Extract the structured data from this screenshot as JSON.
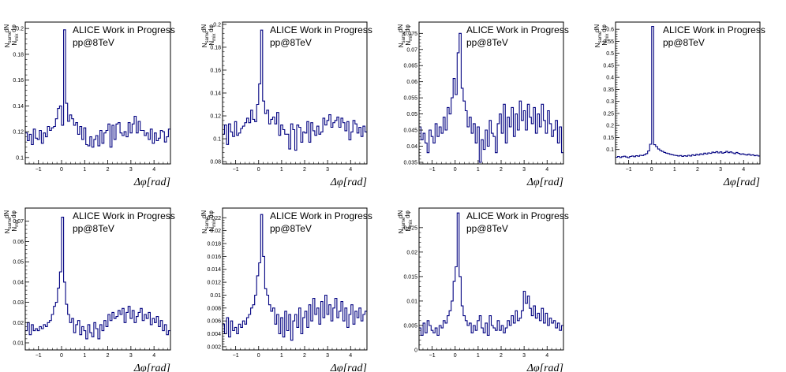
{
  "annotation": [
    "ALICE Work in Progress",
    "pp@8TeV"
  ],
  "xlabel": "Δφ[rad]",
  "ylabel_parts": {
    "num": "N",
    "num_sub": "same",
    "den": "N",
    "den_sub": "mix",
    "frac_num": "dN",
    "frac_den": "dφ"
  },
  "colors": {
    "series": "#000080",
    "frame": "#000000",
    "background": "#ffffff"
  },
  "chart_data": [
    {
      "type": "step",
      "xlim": [
        -1.571,
        4.712
      ],
      "ylim": [
        0.095,
        0.205
      ],
      "xticks": [
        -1,
        0,
        1,
        2,
        3,
        4
      ],
      "yticks": [
        0.1,
        0.12,
        0.14,
        0.16,
        0.18,
        0.2
      ],
      "ytick_labels": [
        "0.1",
        "0.12",
        "0.14",
        "0.16",
        "0.18",
        "0.2"
      ],
      "bins": 72,
      "values": [
        0.119,
        0.113,
        0.118,
        0.11,
        0.122,
        0.115,
        0.114,
        0.121,
        0.111,
        0.119,
        0.116,
        0.124,
        0.121,
        0.123,
        0.124,
        0.13,
        0.138,
        0.14,
        0.125,
        0.199,
        0.142,
        0.128,
        0.133,
        0.13,
        0.125,
        0.127,
        0.118,
        0.124,
        0.114,
        0.123,
        0.11,
        0.109,
        0.116,
        0.108,
        0.114,
        0.117,
        0.109,
        0.121,
        0.111,
        0.119,
        0.121,
        0.126,
        0.108,
        0.125,
        0.114,
        0.126,
        0.127,
        0.119,
        0.117,
        0.12,
        0.116,
        0.127,
        0.119,
        0.126,
        0.132,
        0.119,
        0.128,
        0.121,
        0.121,
        0.117,
        0.119,
        0.114,
        0.122,
        0.111,
        0.119,
        0.113,
        0.115,
        0.121,
        0.12,
        0.112,
        0.116,
        0.122
      ]
    },
    {
      "type": "step",
      "xlim": [
        -1.571,
        4.712
      ],
      "ylim": [
        0.078,
        0.202
      ],
      "xticks": [
        -1,
        0,
        1,
        2,
        3,
        4
      ],
      "yticks": [
        0.08,
        0.1,
        0.12,
        0.14,
        0.16,
        0.18,
        0.2
      ],
      "ytick_labels": [
        "0.08",
        "0.1",
        "0.12",
        "0.14",
        "0.16",
        "0.18",
        "0.2"
      ],
      "bins": 72,
      "values": [
        0.104,
        0.112,
        0.095,
        0.113,
        0.106,
        0.102,
        0.115,
        0.103,
        0.105,
        0.109,
        0.111,
        0.114,
        0.118,
        0.114,
        0.125,
        0.117,
        0.115,
        0.13,
        0.148,
        0.195,
        0.133,
        0.122,
        0.125,
        0.113,
        0.117,
        0.119,
        0.113,
        0.123,
        0.103,
        0.112,
        0.108,
        0.104,
        0.104,
        0.091,
        0.113,
        0.108,
        0.09,
        0.112,
        0.11,
        0.097,
        0.106,
        0.105,
        0.115,
        0.097,
        0.114,
        0.107,
        0.103,
        0.111,
        0.104,
        0.106,
        0.118,
        0.112,
        0.116,
        0.121,
        0.11,
        0.114,
        0.116,
        0.119,
        0.11,
        0.118,
        0.114,
        0.107,
        0.115,
        0.099,
        0.106,
        0.116,
        0.113,
        0.105,
        0.11,
        0.102,
        0.111,
        0.106
      ]
    },
    {
      "type": "step",
      "xlim": [
        -1.571,
        4.712
      ],
      "ylim": [
        0.0345,
        0.0785
      ],
      "xticks": [
        -1,
        0,
        1,
        2,
        3,
        4
      ],
      "yticks": [
        0.035,
        0.04,
        0.045,
        0.05,
        0.055,
        0.06,
        0.065,
        0.07,
        0.075
      ],
      "ytick_labels": [
        "0.035",
        "0.04",
        "0.045",
        "0.05",
        "0.055",
        "0.06",
        "0.065",
        "0.07",
        "0.075"
      ],
      "bins": 72,
      "values": [
        0.046,
        0.042,
        0.044,
        0.041,
        0.038,
        0.045,
        0.043,
        0.041,
        0.047,
        0.043,
        0.046,
        0.044,
        0.049,
        0.045,
        0.052,
        0.05,
        0.055,
        0.061,
        0.056,
        0.069,
        0.075,
        0.058,
        0.054,
        0.051,
        0.046,
        0.049,
        0.044,
        0.047,
        0.041,
        0.046,
        0.035,
        0.042,
        0.039,
        0.045,
        0.04,
        0.048,
        0.044,
        0.043,
        0.038,
        0.047,
        0.05,
        0.044,
        0.053,
        0.041,
        0.049,
        0.046,
        0.052,
        0.043,
        0.05,
        0.045,
        0.054,
        0.048,
        0.051,
        0.045,
        0.053,
        0.049,
        0.047,
        0.052,
        0.044,
        0.05,
        0.046,
        0.053,
        0.048,
        0.044,
        0.051,
        0.047,
        0.043,
        0.045,
        0.048,
        0.041,
        0.046,
        0.038
      ]
    },
    {
      "type": "step",
      "xlim": [
        -1.571,
        4.712
      ],
      "ylim": [
        0.04,
        0.63
      ],
      "xticks": [
        -1,
        0,
        1,
        2,
        3,
        4
      ],
      "yticks": [
        0.1,
        0.15,
        0.2,
        0.25,
        0.3,
        0.35,
        0.4,
        0.45,
        0.5,
        0.55,
        0.6
      ],
      "ytick_labels": [
        "0.1",
        "0.15",
        "0.2",
        "0.25",
        "0.3",
        "0.35",
        "0.4",
        "0.45",
        "0.5",
        "0.55",
        "0.6"
      ],
      "bins": 72,
      "values": [
        0.068,
        0.071,
        0.067,
        0.07,
        0.072,
        0.069,
        0.066,
        0.071,
        0.073,
        0.07,
        0.074,
        0.072,
        0.076,
        0.075,
        0.078,
        0.083,
        0.094,
        0.122,
        0.612,
        0.12,
        0.112,
        0.102,
        0.096,
        0.092,
        0.088,
        0.085,
        0.083,
        0.08,
        0.078,
        0.076,
        0.075,
        0.073,
        0.075,
        0.071,
        0.074,
        0.072,
        0.076,
        0.073,
        0.078,
        0.075,
        0.08,
        0.077,
        0.082,
        0.079,
        0.085,
        0.081,
        0.086,
        0.084,
        0.089,
        0.087,
        0.091,
        0.086,
        0.09,
        0.085,
        0.088,
        0.092,
        0.087,
        0.09,
        0.086,
        0.083,
        0.088,
        0.084,
        0.08,
        0.082,
        0.079,
        0.077,
        0.081,
        0.076,
        0.078,
        0.074,
        0.076,
        0.073
      ]
    },
    {
      "type": "step",
      "xlim": [
        -1.571,
        4.712
      ],
      "ylim": [
        0.0065,
        0.0765
      ],
      "xticks": [
        -1,
        0,
        1,
        2,
        3,
        4
      ],
      "yticks": [
        0.01,
        0.02,
        0.03,
        0.04,
        0.05,
        0.06,
        0.07
      ],
      "ytick_labels": [
        "0.01",
        "0.02",
        "0.03",
        "0.04",
        "0.05",
        "0.06",
        "0.07"
      ],
      "bins": 72,
      "values": [
        0.016,
        0.02,
        0.014,
        0.019,
        0.016,
        0.017,
        0.016,
        0.018,
        0.017,
        0.019,
        0.018,
        0.02,
        0.021,
        0.024,
        0.028,
        0.03,
        0.037,
        0.045,
        0.072,
        0.04,
        0.029,
        0.024,
        0.02,
        0.022,
        0.015,
        0.019,
        0.021,
        0.014,
        0.018,
        0.016,
        0.012,
        0.019,
        0.015,
        0.013,
        0.02,
        0.017,
        0.012,
        0.019,
        0.016,
        0.021,
        0.018,
        0.024,
        0.021,
        0.025,
        0.022,
        0.023,
        0.026,
        0.024,
        0.027,
        0.02,
        0.025,
        0.028,
        0.022,
        0.026,
        0.02,
        0.023,
        0.025,
        0.027,
        0.021,
        0.024,
        0.022,
        0.025,
        0.019,
        0.022,
        0.02,
        0.023,
        0.018,
        0.021,
        0.016,
        0.019,
        0.014,
        0.016
      ]
    },
    {
      "type": "step",
      "xlim": [
        -1.571,
        4.712
      ],
      "ylim": [
        0.0015,
        0.0235
      ],
      "xticks": [
        -1,
        0,
        1,
        2,
        3,
        4
      ],
      "yticks": [
        0.002,
        0.004,
        0.006,
        0.008,
        0.01,
        0.012,
        0.014,
        0.016,
        0.018,
        0.02,
        0.022
      ],
      "ytick_labels": [
        "0.002",
        "0.004",
        "0.006",
        "0.008",
        "0.01",
        "0.012",
        "0.014",
        "0.016",
        "0.018",
        "0.02",
        "0.022"
      ],
      "bins": 72,
      "values": [
        0.0055,
        0.004,
        0.0065,
        0.0035,
        0.006,
        0.0045,
        0.005,
        0.004,
        0.0055,
        0.005,
        0.006,
        0.0055,
        0.0065,
        0.007,
        0.008,
        0.0085,
        0.01,
        0.013,
        0.015,
        0.0225,
        0.016,
        0.011,
        0.01,
        0.0085,
        0.0075,
        0.008,
        0.0055,
        0.007,
        0.004,
        0.0065,
        0.0035,
        0.0075,
        0.0045,
        0.007,
        0.003,
        0.006,
        0.007,
        0.005,
        0.008,
        0.004,
        0.0065,
        0.0075,
        0.005,
        0.0085,
        0.006,
        0.0095,
        0.007,
        0.008,
        0.0055,
        0.009,
        0.0065,
        0.01,
        0.007,
        0.0085,
        0.006,
        0.008,
        0.0095,
        0.0065,
        0.0075,
        0.009,
        0.006,
        0.008,
        0.005,
        0.007,
        0.0085,
        0.0055,
        0.0075,
        0.0065,
        0.008,
        0.006,
        0.007,
        0.0075
      ]
    },
    {
      "type": "step",
      "xlim": [
        -1.571,
        4.712
      ],
      "ylim": [
        0.0,
        0.029
      ],
      "xticks": [
        -1,
        0,
        1,
        2,
        3,
        4
      ],
      "yticks": [
        0,
        0.005,
        0.01,
        0.015,
        0.02,
        0.025
      ],
      "ytick_labels": [
        "0",
        "0.005",
        "0.01",
        "0.015",
        "0.02",
        "0.025"
      ],
      "bins": 72,
      "values": [
        0.0045,
        0.003,
        0.0055,
        0.0035,
        0.006,
        0.005,
        0.004,
        0.0035,
        0.0045,
        0.003,
        0.005,
        0.0045,
        0.006,
        0.0055,
        0.007,
        0.008,
        0.01,
        0.014,
        0.017,
        0.028,
        0.015,
        0.009,
        0.007,
        0.006,
        0.005,
        0.0055,
        0.0035,
        0.005,
        0.004,
        0.006,
        0.007,
        0.0045,
        0.0035,
        0.0055,
        0.003,
        0.007,
        0.005,
        0.0045,
        0.004,
        0.006,
        0.004,
        0.005,
        0.0035,
        0.0045,
        0.006,
        0.005,
        0.007,
        0.0055,
        0.008,
        0.006,
        0.0065,
        0.008,
        0.012,
        0.0095,
        0.011,
        0.0085,
        0.007,
        0.009,
        0.0065,
        0.0075,
        0.006,
        0.0085,
        0.0055,
        0.0075,
        0.005,
        0.0065,
        0.0055,
        0.006,
        0.0045,
        0.0055,
        0.004,
        0.005
      ]
    }
  ]
}
